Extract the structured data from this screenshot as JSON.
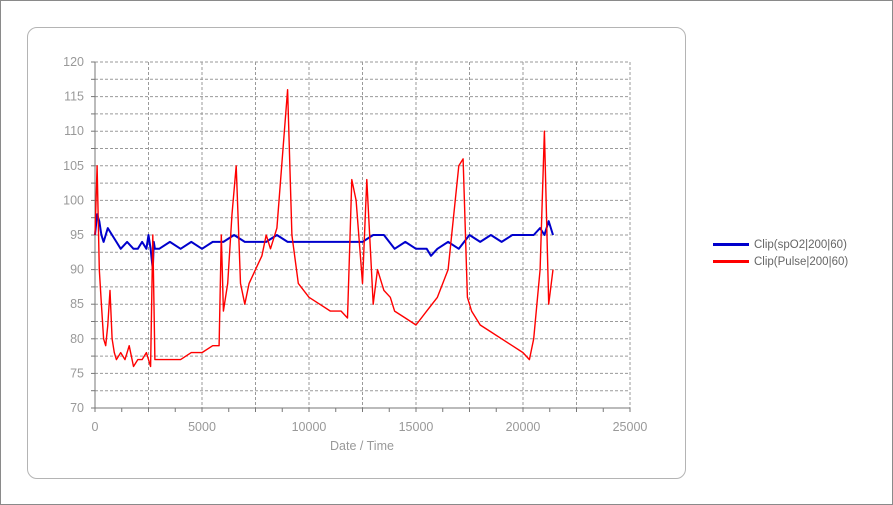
{
  "chart_data": {
    "type": "line",
    "xlabel": "Date / Time",
    "ylabel": "",
    "xlim": [
      0,
      25000
    ],
    "ylim": [
      70,
      120
    ],
    "xticks": [
      "0",
      "5000",
      "10000",
      "15000",
      "20000",
      "25000"
    ],
    "yticks": [
      "70",
      "75",
      "80",
      "85",
      "90",
      "95",
      "100",
      "105",
      "110",
      "115",
      "120"
    ],
    "grid": true,
    "legend_position": "right",
    "series": [
      {
        "name": "Clip(spO2|200|60)",
        "color": "#0000cc",
        "x": [
          0,
          100,
          200,
          300,
          400,
          500,
          600,
          800,
          1000,
          1200,
          1500,
          1800,
          2000,
          2200,
          2400,
          2500,
          2600,
          2700,
          2750,
          2800,
          3000,
          3500,
          4000,
          4500,
          5000,
          5500,
          5800,
          6000,
          6500,
          7000,
          7500,
          8000,
          8500,
          9000,
          9500,
          10000,
          10500,
          11000,
          11500,
          12000,
          12500,
          13000,
          13500,
          14000,
          14500,
          15000,
          15500,
          15700,
          16000,
          16500,
          17000,
          17500,
          18000,
          18500,
          19000,
          19500,
          20000,
          20500,
          20800,
          21000,
          21200,
          21400
        ],
        "values": [
          95,
          98,
          97,
          95,
          94,
          95,
          96,
          95,
          94,
          93,
          94,
          93,
          93,
          94,
          93,
          95,
          93,
          90,
          94,
          93,
          93,
          94,
          93,
          94,
          93,
          94,
          94,
          94,
          95,
          94,
          94,
          94,
          95,
          94,
          94,
          94,
          94,
          94,
          94,
          94,
          94,
          95,
          95,
          93,
          94,
          93,
          93,
          92,
          93,
          94,
          93,
          95,
          94,
          95,
          94,
          95,
          95,
          95,
          96,
          95,
          97,
          95
        ]
      },
      {
        "name": "Clip(Pulse|200|60)",
        "color": "#ff0000",
        "x": [
          0,
          100,
          200,
          300,
          400,
          500,
          600,
          700,
          800,
          900,
          1000,
          1200,
          1400,
          1600,
          1800,
          2000,
          2200,
          2400,
          2600,
          2700,
          2800,
          3000,
          3500,
          4000,
          4500,
          5000,
          5500,
          5800,
          5900,
          6000,
          6200,
          6400,
          6600,
          6800,
          7000,
          7200,
          7500,
          7800,
          8000,
          8200,
          8500,
          8800,
          9000,
          9200,
          9500,
          10000,
          10500,
          11000,
          11500,
          11800,
          12000,
          12200,
          12500,
          12700,
          13000,
          13200,
          13500,
          13800,
          14000,
          14500,
          15000,
          15500,
          16000,
          16500,
          17000,
          17200,
          17400,
          17600,
          18000,
          18500,
          19000,
          19500,
          20000,
          20300,
          20500,
          20800,
          21000,
          21200,
          21400
        ],
        "values": [
          95,
          105,
          90,
          85,
          80,
          79,
          82,
          87,
          80,
          78,
          77,
          78,
          77,
          79,
          76,
          77,
          77,
          78,
          76,
          95,
          77,
          77,
          77,
          77,
          78,
          78,
          79,
          79,
          95,
          84,
          88,
          98,
          105,
          88,
          85,
          88,
          90,
          92,
          95,
          93,
          96,
          108,
          116,
          95,
          88,
          86,
          85,
          84,
          84,
          83,
          103,
          100,
          88,
          103,
          85,
          90,
          87,
          86,
          84,
          83,
          82,
          84,
          86,
          90,
          105,
          106,
          86,
          84,
          82,
          81,
          80,
          79,
          78,
          77,
          80,
          90,
          110,
          85,
          90
        ]
      }
    ]
  }
}
